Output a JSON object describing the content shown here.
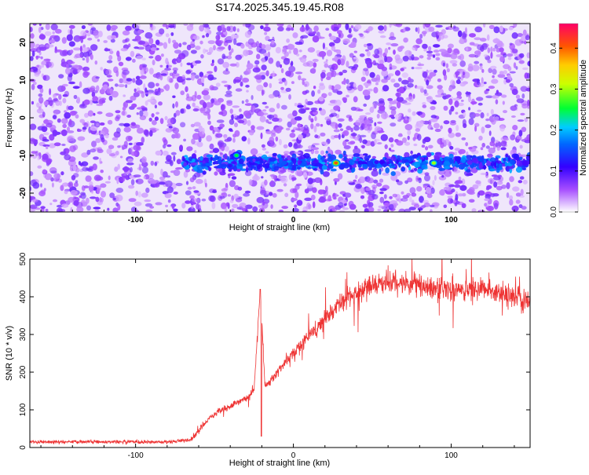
{
  "title": "S174.2025.345.19.45.R08",
  "chart_data": [
    {
      "type": "heatmap",
      "xlabel": "Height of straight line (km)",
      "ylabel": "Frequency (Hz)",
      "xlim": [
        -167,
        150
      ],
      "ylim": [
        -25,
        25
      ],
      "xticks": [
        -100,
        0,
        100
      ],
      "yticks": [
        -20,
        -10,
        0,
        10,
        20
      ],
      "colorbar": {
        "label": "Normalized spectral amplitude",
        "range": [
          0,
          0.46
        ],
        "ticks": [
          0.0,
          0.1,
          0.2,
          0.3,
          0.4
        ],
        "colormap": [
          "#ffffff",
          "#9933ff",
          "#0000ff",
          "#00ccff",
          "#00ff00",
          "#ffff00",
          "#ff6600",
          "#ff0066"
        ]
      },
      "features": [
        {
          "name": "band",
          "frequency": -12,
          "x_start": -70,
          "x_end": 150,
          "typical_amplitude": 0.12
        },
        {
          "name": "peak",
          "x": -36,
          "frequency": -10,
          "amplitude": 0.25
        },
        {
          "name": "peak",
          "x": 27,
          "frequency": -12,
          "amplitude": 0.4
        },
        {
          "name": "peak",
          "x": 89,
          "frequency": -12,
          "amplitude": 0.3
        }
      ],
      "background_amplitude": 0.05
    },
    {
      "type": "line",
      "xlabel": "Height of straight line (km)",
      "ylabel": "SNR (10 * v/v)",
      "xlim": [
        -167,
        150
      ],
      "ylim": [
        0,
        500
      ],
      "xticks": [
        -100,
        0,
        100
      ],
      "yticks": [
        0,
        100,
        200,
        300,
        400,
        500
      ],
      "color": "#ee3333",
      "x": [
        -167,
        -140,
        -110,
        -80,
        -65,
        -60,
        -55,
        -50,
        -40,
        -30,
        -25,
        -21,
        -18,
        -10,
        0,
        10,
        20,
        30,
        40,
        50,
        60,
        80,
        100,
        120,
        130,
        140,
        150
      ],
      "values": [
        15,
        15,
        15,
        15,
        20,
        45,
        70,
        90,
        110,
        130,
        150,
        420,
        160,
        200,
        250,
        300,
        340,
        380,
        410,
        430,
        440,
        430,
        420,
        420,
        410,
        400,
        380
      ]
    }
  ]
}
